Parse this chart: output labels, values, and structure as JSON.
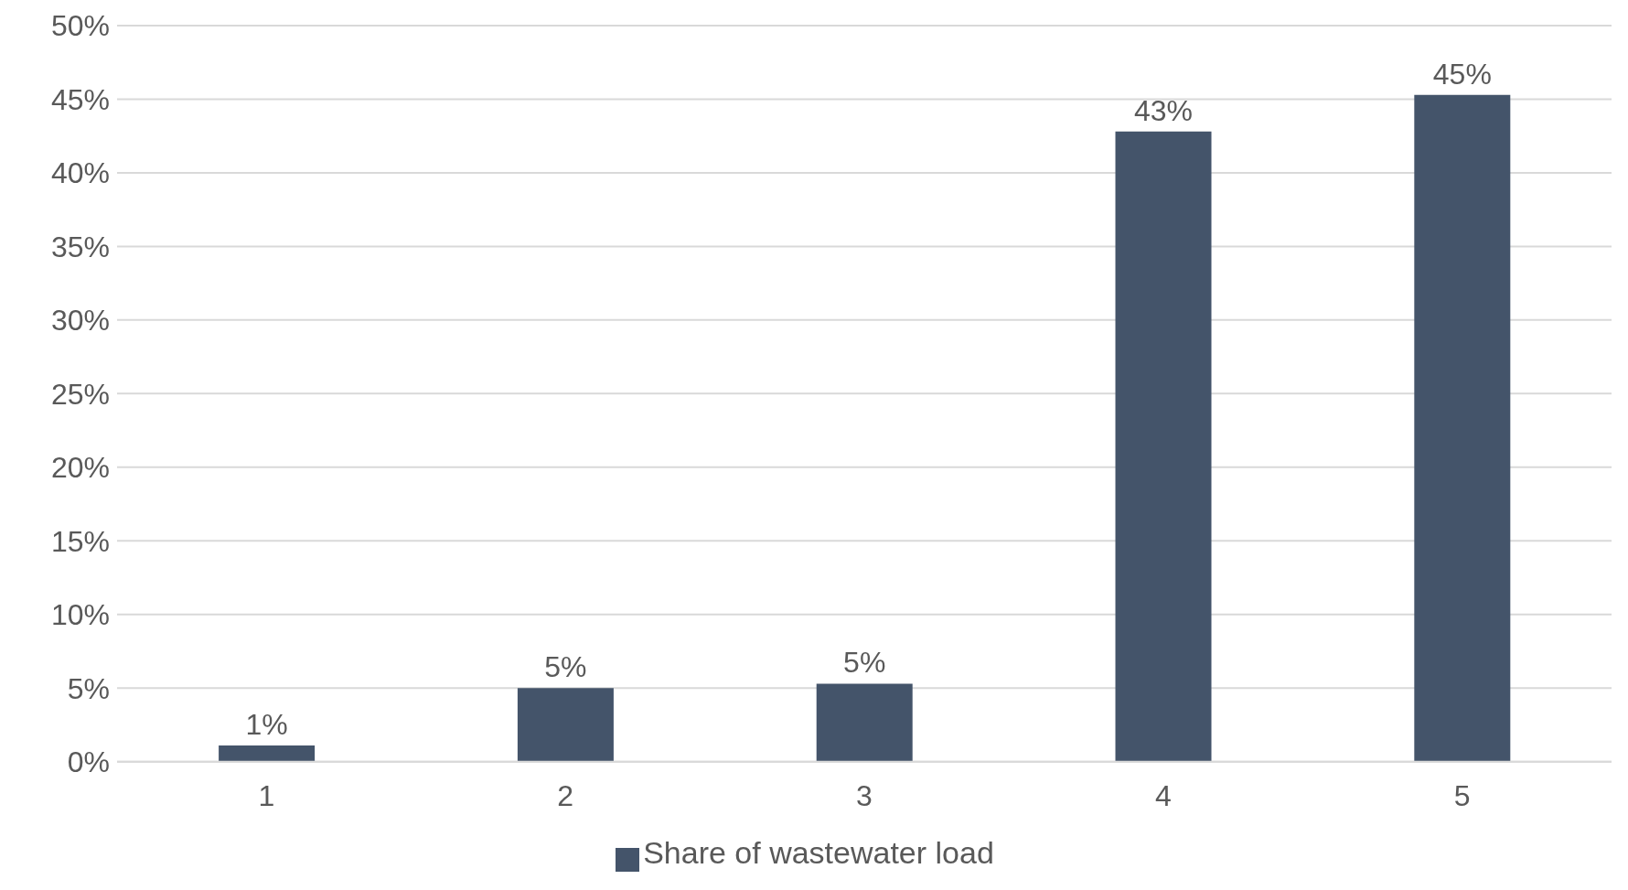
{
  "chart_data": {
    "type": "bar",
    "categories": [
      "1",
      "2",
      "3",
      "4",
      "5"
    ],
    "series": [
      {
        "name": "Share of wastewater load",
        "color": "#44546a",
        "values": [
          1.1,
          5.0,
          5.3,
          42.8,
          45.3
        ],
        "value_labels": [
          "1%",
          "5%",
          "5%",
          "43%",
          "45%"
        ]
      }
    ],
    "ylim": [
      0,
      50
    ],
    "yticks": [
      {
        "value": 0,
        "label": "0%"
      },
      {
        "value": 5,
        "label": "5%"
      },
      {
        "value": 10,
        "label": "10%"
      },
      {
        "value": 15,
        "label": "15%"
      },
      {
        "value": 20,
        "label": "20%"
      },
      {
        "value": 25,
        "label": "25%"
      },
      {
        "value": 30,
        "label": "30%"
      },
      {
        "value": 35,
        "label": "35%"
      },
      {
        "value": 40,
        "label": "40%"
      },
      {
        "value": 45,
        "label": "45%"
      },
      {
        "value": 50,
        "label": "50%"
      }
    ],
    "grid": "y",
    "legend": "bottom"
  }
}
